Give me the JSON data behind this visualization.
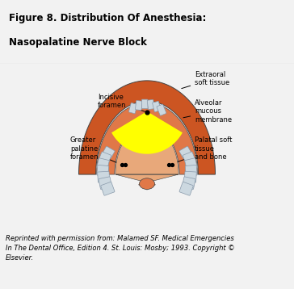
{
  "title_line1": "Figure 8. Distribution Of Anesthesia:",
  "title_line2": "Nasopalatine Nerve Block",
  "title_bg": "#d4d4d4",
  "main_bg": "#f2f2f2",
  "caption": "Reprinted with permission from: Malamed SF. Medical Emergencies\nIn The Dental Office, Edition 4. St. Louis: Mosby; 1993. Copyright ©\nElsevier.",
  "labels": {
    "incisive_foramen": "Incisive\nforamen",
    "extraoral": "Extraoral\nsoft tissue",
    "alveolar": "Alveolar\nmucous\nmembrane",
    "greater_palatine": "Greater\npalatine\nforamen",
    "palatal": "Palatal soft\ntissue\nand bone"
  },
  "colors": {
    "outer_gum": "#cc5522",
    "inner_gum_ring": "#e07848",
    "palate_bg": "#e8a87a",
    "palate_center": "#dda070",
    "teeth": "#ccd8e0",
    "teeth_edge": "#8899aa",
    "yellow_region": "#ffff00",
    "black": "#000000",
    "outline": "#444444",
    "title_border": "#999999"
  },
  "figsize": [
    3.64,
    3.58
  ],
  "dpi": 100
}
